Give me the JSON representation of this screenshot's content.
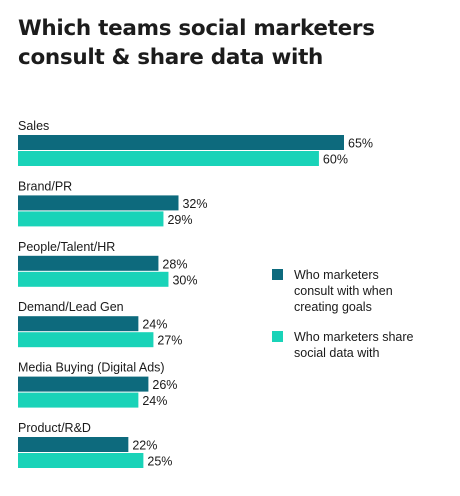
{
  "chart_data": {
    "type": "bar",
    "orientation": "horizontal",
    "title": "Which teams social marketers\nconsult & share data with",
    "categories": [
      "Sales",
      "Brand/PR",
      "People/Talent/HR",
      "Demand/Lead Gen",
      "Media Buying (Digital Ads)",
      "Product/R&D"
    ],
    "series": [
      {
        "name": "Who marketers consult with when creating goals",
        "legend_lines": [
          "Who marketers",
          "consult with when",
          "creating goals"
        ],
        "color": "#0d6a7d",
        "values": [
          65,
          32,
          28,
          24,
          26,
          22
        ],
        "labels": [
          "65%",
          "32%",
          "28%",
          "24%",
          "26%",
          "22%"
        ]
      },
      {
        "name": "Who marketers share social data with",
        "legend_lines": [
          "Who marketers share",
          "social data with"
        ],
        "color": "#19d3b8",
        "values": [
          60,
          29,
          30,
          27,
          24,
          25
        ],
        "labels": [
          "60%",
          "29%",
          "30%",
          "27%",
          "24%",
          "25%"
        ]
      }
    ],
    "value_unit": "%",
    "xlim": [
      0,
      100
    ],
    "grid": false,
    "legend_position": "right"
  }
}
